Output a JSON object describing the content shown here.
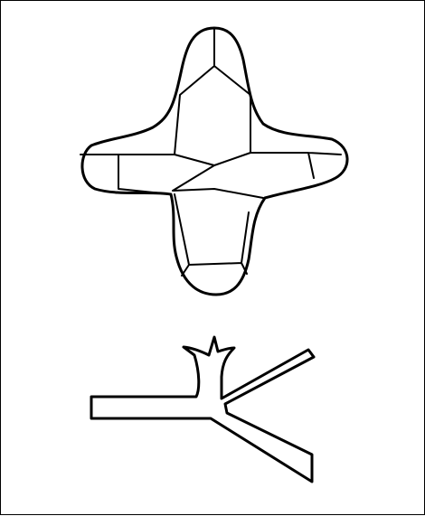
{
  "figure": {
    "background": "#ffffff",
    "stroke": "#000000",
    "shapes": [
      "four-pointed-star-crystal",
      "branching-tree-outline"
    ]
  }
}
